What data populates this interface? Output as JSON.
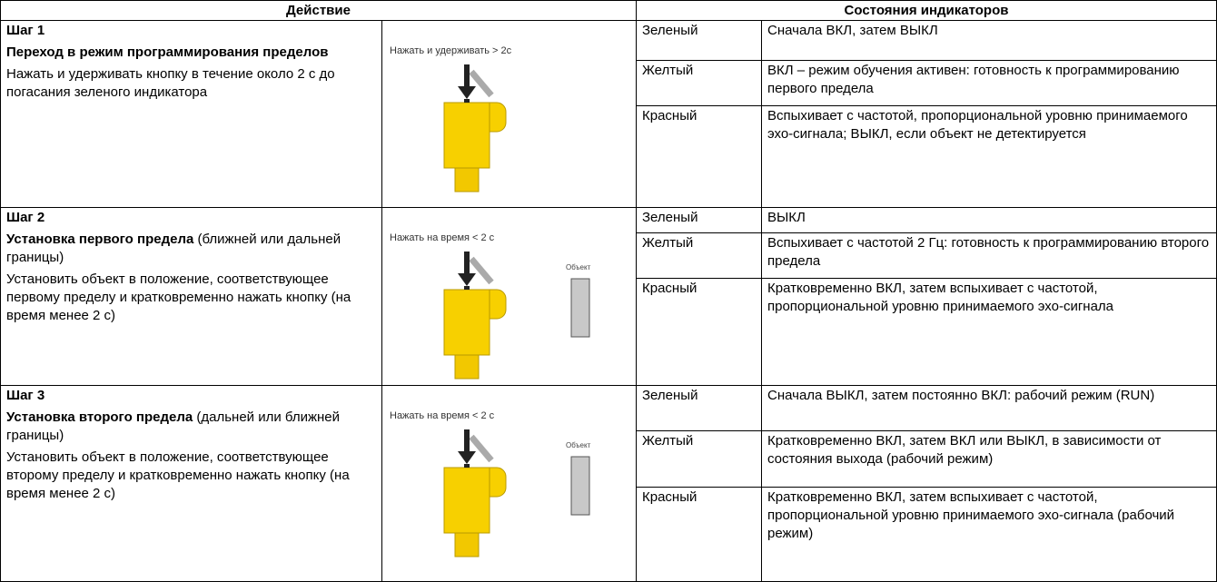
{
  "header": {
    "action": "Действие",
    "indicators": "Состояния индикаторов"
  },
  "steps": [
    {
      "title": "Шаг 1",
      "heading": "Переход в режим программирования пределов",
      "description": "Нажать и удерживать кнопку в течение около 2 с до погасания зеленого индикатора",
      "image": {
        "caption": "Нажать и удерживать > 2с"
      },
      "indicators": [
        {
          "color": "Зеленый",
          "state": "Сначала ВКЛ, затем ВЫКЛ"
        },
        {
          "color": "Желтый",
          "state": "ВКЛ – режим обучения активен: готовность к программированию первого предела"
        },
        {
          "color": "Красный",
          "state": "Вспыхивает с частотой, пропорциональной уровню принимаемого эхо-сигнала; ВЫКЛ, если объект не детектируется"
        }
      ]
    },
    {
      "title": "Шаг 2",
      "heading": "Установка первого предела",
      "heading_note": "(ближней или дальней границы)",
      "description": "Установить объект в положение, соответствующее первому пределу и кратковременно нажать кнопку (на время менее 2 с)",
      "image": {
        "caption": "Нажать на время < 2 с",
        "object_label": "Объект"
      },
      "indicators": [
        {
          "color": "Зеленый",
          "state": "ВЫКЛ"
        },
        {
          "color": "Желтый",
          "state": "Вспыхивает с частотой 2 Гц: готовность к программированию второго предела"
        },
        {
          "color": "Красный",
          "state": "Кратковременно ВКЛ, затем вспыхивает с частотой, пропорциональной уровню принимаемого эхо-сигнала"
        }
      ]
    },
    {
      "title": "Шаг 3",
      "heading": "Установка второго предела",
      "heading_note": "(дальней или ближней границы)",
      "description": "Установить объект в положение, соответствующее второму пределу и кратковременно нажать кнопку (на время менее 2 с)",
      "image": {
        "caption": "Нажать на время < 2 с",
        "object_label": "Объект"
      },
      "indicators": [
        {
          "color": "Зеленый",
          "state": "Сначала ВЫКЛ, затем постоянно ВКЛ: рабочий режим (RUN)"
        },
        {
          "color": "Желтый",
          "state": "Кратковременно ВКЛ, затем ВКЛ или ВЫКЛ, в зависимости от состояния выхода (рабочий режим)"
        },
        {
          "color": "Красный",
          "state": "Кратковременно ВКЛ, затем вспыхивает с частотой, пропорциональной уровню принимаемого эхо-сигнала (рабочий режим)"
        }
      ]
    }
  ]
}
